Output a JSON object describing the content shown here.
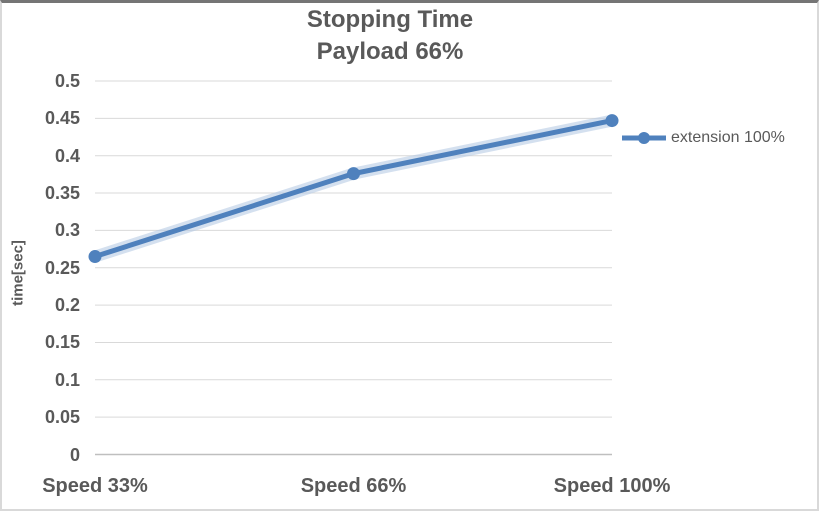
{
  "chart_data": {
    "type": "line",
    "title": "Stopping Time",
    "subtitle": "Payload 66%",
    "ylabel": "time[sec]",
    "categories": [
      "Speed 33%",
      "Speed 66%",
      "Speed 100%"
    ],
    "series": [
      {
        "name": "extension 100%",
        "values": [
          0.265,
          0.376,
          0.447
        ]
      }
    ],
    "ylim": [
      0,
      0.5
    ],
    "ytick_labels": [
      "0",
      "0.05",
      "0.1",
      "0.15",
      "0.2",
      "0.25",
      "0.3",
      "0.35",
      "0.4",
      "0.45",
      "0.5"
    ],
    "grid": true,
    "legend_position": "right",
    "colors": {
      "series_line": "#4F81BD",
      "series_glow": "#B8CCE4",
      "gridline": "#D9D9D9",
      "axis_line": "#BFBFBF",
      "text": "#595959",
      "chart_border": "#D9D9D9",
      "chart_border_top": "#757575"
    }
  }
}
